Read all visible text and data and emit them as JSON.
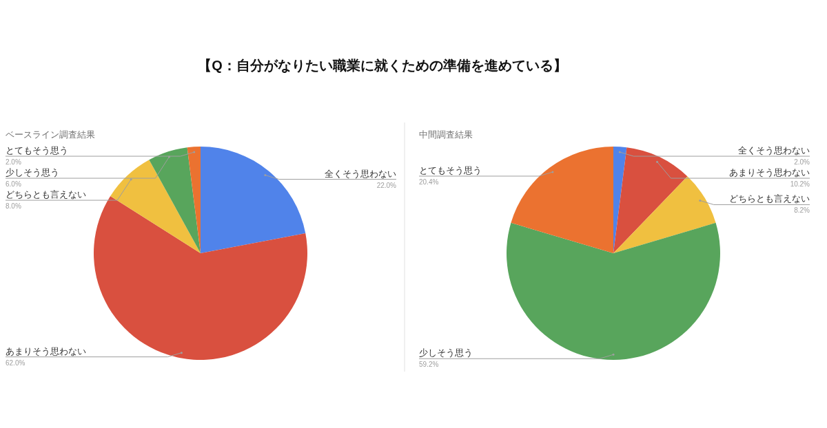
{
  "chart_data": [
    {
      "type": "pie",
      "title": "【Q：自分がなりたい職業に就くための準備を進めている】",
      "subtitle": "ベースライン調査結果",
      "categories": [
        "全くそう思わない",
        "あまりそう思わない",
        "どちらとも言えない",
        "少しそう思う",
        "とてもそう思う"
      ],
      "values": [
        22.0,
        62.0,
        8.0,
        6.0,
        2.0
      ],
      "value_labels": [
        "22.0%",
        "62.0%",
        "8.0%",
        "6.0%",
        "2.0%"
      ],
      "colors": [
        "#5083ea",
        "#d9503f",
        "#f0c040",
        "#58a55c",
        "#eb7230"
      ]
    },
    {
      "type": "pie",
      "title": "中間調査結果",
      "categories": [
        "全くそう思わない",
        "あまりそう思わない",
        "どちらとも言えない",
        "少しそう思う",
        "とてもそう思う"
      ],
      "values": [
        2.0,
        10.2,
        8.2,
        59.2,
        20.4
      ],
      "value_labels": [
        "2.0%",
        "10.2%",
        "8.2%",
        "59.2%",
        "20.4%"
      ],
      "colors": [
        "#5083ea",
        "#d9503f",
        "#f0c040",
        "#58a55c",
        "#eb7230"
      ]
    }
  ]
}
